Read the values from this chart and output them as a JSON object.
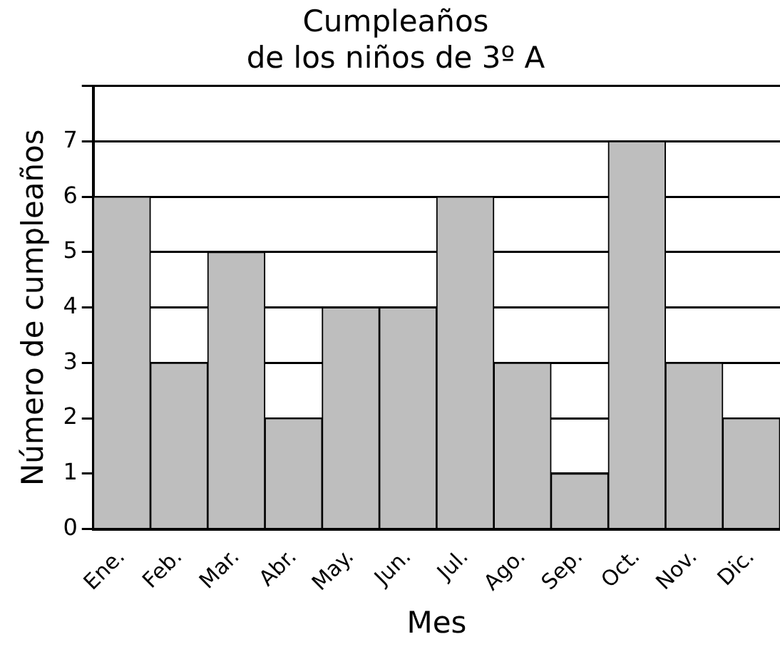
{
  "chart_data": {
    "type": "bar",
    "title": [
      "Cumpleaños",
      "de los niños de 3º A"
    ],
    "xlabel": "Mes",
    "ylabel": "Número de cumpleaños",
    "categories": [
      "Ene.",
      "Feb.",
      "Mar.",
      "Abr.",
      "May.",
      "Jun.",
      "Jul.",
      "Ago.",
      "Sep.",
      "Oct.",
      "Nov.",
      "Dic."
    ],
    "values": [
      6,
      3,
      5,
      2,
      4,
      4,
      6,
      3,
      1,
      7,
      3,
      2
    ],
    "color": "#bebebe",
    "ylim": [
      0,
      8
    ],
    "yticks": [
      0,
      1,
      2,
      3,
      4,
      5,
      6,
      7,
      {
        "value": 8,
        "label": null
      }
    ],
    "grid": "y"
  }
}
